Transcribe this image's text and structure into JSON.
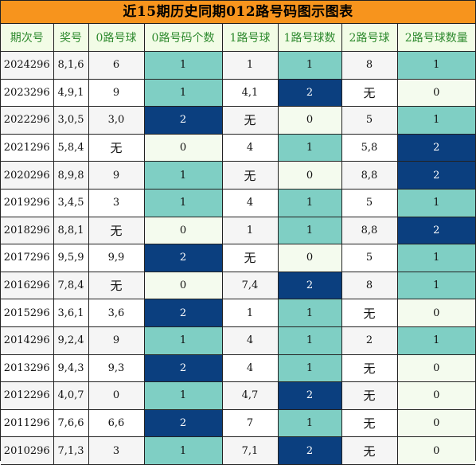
{
  "title": "近15期历史同期012路号码图示图表",
  "headers": [
    "期次号",
    "奖号",
    "0路号球",
    "0路号码个数",
    "1路号球",
    "1路号球数",
    "2路号球",
    "2路号球数量"
  ],
  "rows": [
    [
      "2024296",
      "8,1,6",
      "6",
      "1",
      "1",
      "1",
      "8",
      "1"
    ],
    [
      "2023296",
      "4,9,1",
      "9",
      "1",
      "4,1",
      "2",
      "无",
      "0"
    ],
    [
      "2022296",
      "3,0,5",
      "3,0",
      "2",
      "无",
      "0",
      "5",
      "1"
    ],
    [
      "2021296",
      "5,8,4",
      "无",
      "0",
      "4",
      "1",
      "5,8",
      "2"
    ],
    [
      "2020296",
      "8,9,8",
      "9",
      "1",
      "无",
      "0",
      "8,8",
      "2"
    ],
    [
      "2019296",
      "3,4,5",
      "3",
      "1",
      "4",
      "1",
      "5",
      "1"
    ],
    [
      "2018296",
      "8,8,1",
      "无",
      "0",
      "1",
      "1",
      "8,8",
      "2"
    ],
    [
      "2017296",
      "9,5,9",
      "9,9",
      "2",
      "无",
      "0",
      "5",
      "1"
    ],
    [
      "2016296",
      "7,8,4",
      "无",
      "0",
      "7,4",
      "2",
      "8",
      "1"
    ],
    [
      "2015296",
      "3,6,1",
      "3,6",
      "2",
      "1",
      "1",
      "无",
      "0"
    ],
    [
      "2014296",
      "9,2,4",
      "9",
      "1",
      "4",
      "1",
      "2",
      "1"
    ],
    [
      "2013296",
      "9,4,3",
      "9,3",
      "2",
      "4",
      "1",
      "无",
      "0"
    ],
    [
      "2012296",
      "4,0,7",
      "0",
      "1",
      "4,7",
      "2",
      "无",
      "0"
    ],
    [
      "2011296",
      "7,6,6",
      "6,6",
      "2",
      "7",
      "1",
      "无",
      "0"
    ],
    [
      "2010296",
      "7,1,3",
      "3",
      "1",
      "7,1",
      "2",
      "无",
      "0"
    ]
  ],
  "colors": {
    "title_bg": "#f7941d",
    "header_text": "#2e8a2e",
    "count_1": "#7fcfc4",
    "count_2": "#0b3f7f",
    "count_0": "#f4fbee"
  }
}
